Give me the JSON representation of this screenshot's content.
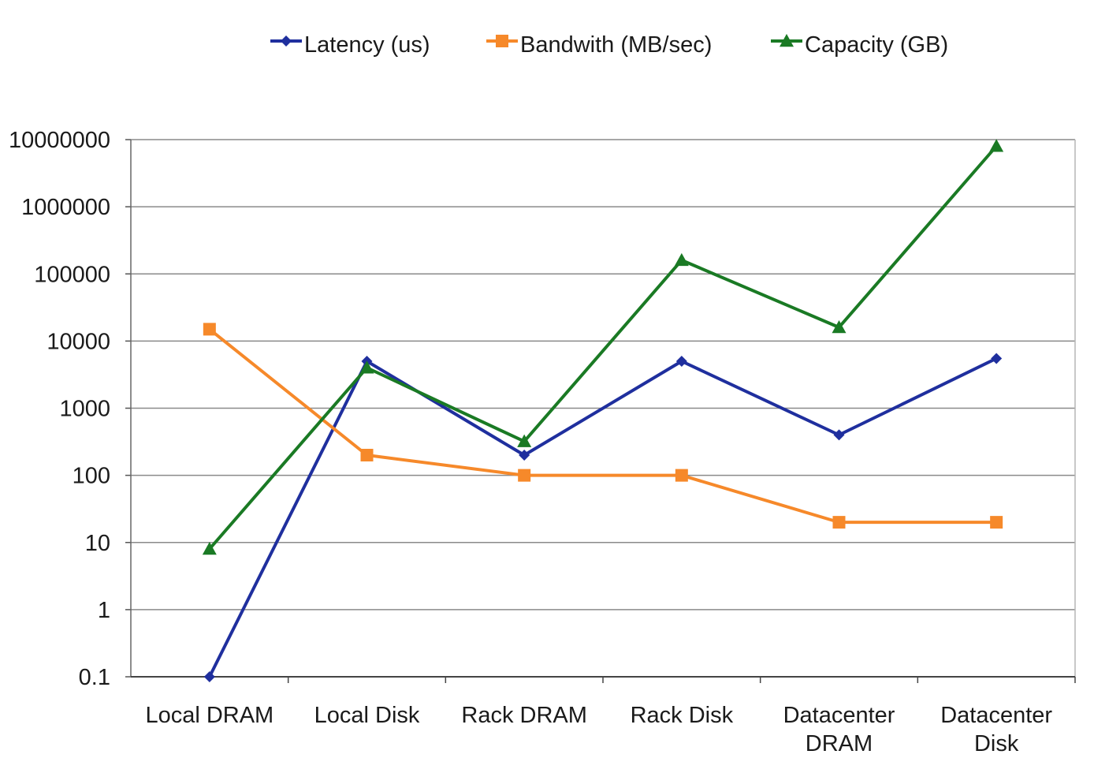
{
  "chart_data": {
    "type": "line",
    "y_scale": "log",
    "ylim": [
      0.1,
      10000000
    ],
    "y_ticks": [
      "10000000",
      "1000000",
      "100000",
      "10000",
      "1000",
      "100",
      "10",
      "1",
      "0.1"
    ],
    "y_tick_values": [
      10000000,
      1000000,
      100000,
      10000,
      1000,
      100,
      10,
      1,
      0.1
    ],
    "categories": [
      [
        "Local DRAM"
      ],
      [
        "Local Disk"
      ],
      [
        "Rack DRAM"
      ],
      [
        "Rack Disk"
      ],
      [
        "Datacenter",
        "DRAM"
      ],
      [
        "Datacenter",
        "Disk"
      ]
    ],
    "grid": true,
    "legend_position": "top",
    "series": [
      {
        "name": "Latency (us)",
        "color": "#1f2f9e",
        "marker": "diamond",
        "values": [
          0.1,
          5000,
          200,
          5000,
          400,
          5500
        ]
      },
      {
        "name": "Bandwith (MB/sec)",
        "color": "#f6892a",
        "marker": "square",
        "values": [
          15000,
          200,
          100,
          100,
          20,
          20
        ]
      },
      {
        "name": "Capacity (GB)",
        "color": "#1a7a24",
        "marker": "triangle",
        "values": [
          8,
          4000,
          320,
          160000,
          16000,
          8000000
        ]
      }
    ]
  }
}
